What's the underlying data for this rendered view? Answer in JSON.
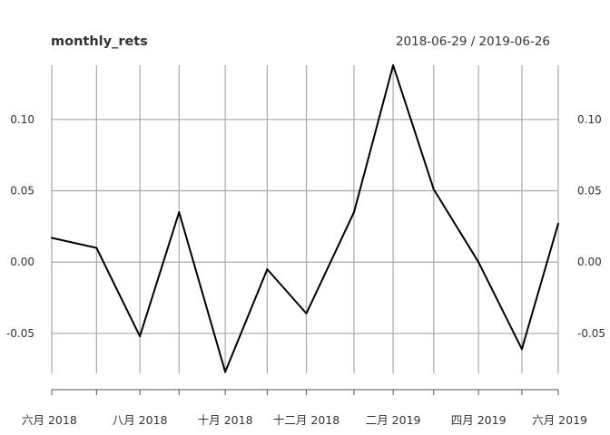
{
  "chart_data": {
    "type": "line",
    "title": "monthly_rets",
    "subtitle": "2018-06-29 / 2019-06-26",
    "xlabel": "",
    "ylabel": "",
    "ylim": [
      -0.078,
      0.138
    ],
    "y_ticks": [
      "0.10",
      "0.05",
      "0.00",
      "-0.05"
    ],
    "x_tick_labels": [
      "六月 2018",
      "八月 2018",
      "十月 2018",
      "十二月 2018",
      "二月 2019",
      "四月 2019",
      "六月 2019"
    ],
    "grid": true,
    "series": [
      {
        "x": [
          "2018-06-29",
          "2018-07-31",
          "2018-08-31",
          "2018-09-28",
          "2018-10-31",
          "2018-11-30",
          "2018-12-28",
          "2019-01-31",
          "2019-02-28",
          "2019-03-29",
          "2019-04-30",
          "2019-05-31",
          "2019-06-26"
        ],
        "values": [
          0.017,
          0.01,
          -0.052,
          0.035,
          -0.077,
          -0.005,
          -0.036,
          0.035,
          0.138,
          0.051,
          0.0,
          -0.061,
          0.027
        ],
        "color": "#000000"
      }
    ]
  }
}
